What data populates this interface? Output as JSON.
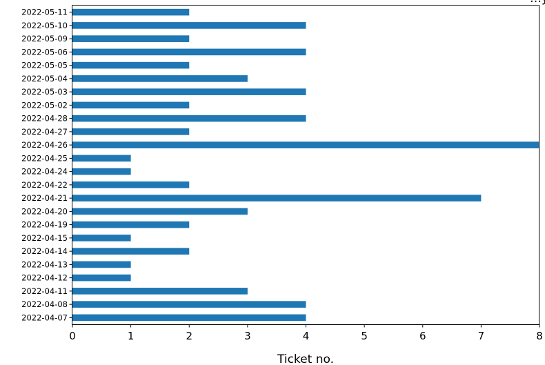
{
  "chart_data": {
    "type": "bar",
    "orientation": "horizontal",
    "title": "…y",
    "xlabel": "Ticket no.",
    "ylabel": "",
    "xlim": [
      0,
      8
    ],
    "xticks": [
      "0",
      "1",
      "2",
      "3",
      "4",
      "5",
      "6",
      "7",
      "8"
    ],
    "grid": false,
    "bar_color": "#1f77b4",
    "categories": [
      "2022-04-07",
      "2022-04-08",
      "2022-04-11",
      "2022-04-12",
      "2022-04-13",
      "2022-04-14",
      "2022-04-15",
      "2022-04-19",
      "2022-04-20",
      "2022-04-21",
      "2022-04-22",
      "2022-04-24",
      "2022-04-25",
      "2022-04-26",
      "2022-04-27",
      "2022-04-28",
      "2022-05-02",
      "2022-05-03",
      "2022-05-04",
      "2022-05-05",
      "2022-05-06",
      "2022-05-09",
      "2022-05-10",
      "2022-05-11"
    ],
    "values": [
      4,
      4,
      3,
      1,
      1,
      2,
      1,
      2,
      3,
      7,
      2,
      1,
      1,
      8,
      2,
      4,
      2,
      4,
      3,
      2,
      4,
      2,
      4,
      2
    ]
  }
}
